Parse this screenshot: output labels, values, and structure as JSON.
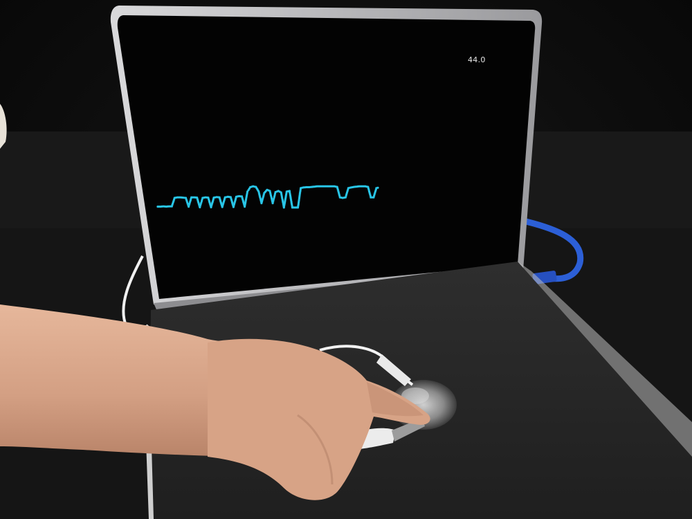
{
  "screen": {
    "reading": "44.0",
    "trace_color": "#29c6e8",
    "trace_samples": [
      0.08,
      0.08,
      0.09,
      0.08,
      0.09,
      0.09,
      0.38,
      0.4,
      0.4,
      0.39,
      0.38,
      0.08,
      0.4,
      0.4,
      0.39,
      0.06,
      0.38,
      0.4,
      0.39,
      0.06,
      0.39,
      0.41,
      0.4,
      0.07,
      0.4,
      0.42,
      0.41,
      0.07,
      0.42,
      0.44,
      0.43,
      0.08,
      0.6,
      0.75,
      0.78,
      0.76,
      0.6,
      0.2,
      0.55,
      0.66,
      0.62,
      0.2,
      0.58,
      0.62,
      0.57,
      0.05,
      0.6,
      0.62,
      0.05,
      0.05,
      0.05,
      0.72,
      0.74,
      0.75,
      0.75,
      0.76,
      0.77,
      0.78,
      0.78,
      0.78,
      0.78,
      0.78,
      0.78,
      0.78,
      0.76,
      0.4,
      0.38,
      0.4,
      0.72,
      0.74,
      0.76,
      0.77,
      0.78,
      0.78,
      0.78,
      0.76,
      0.4,
      0.4,
      0.72,
      0.74
    ]
  },
  "colors": {
    "backdrop": "#0e0e0e",
    "laptop_shell": "#c9c9cb",
    "screen_bezel": "#050505",
    "board": "#262626",
    "skin": "#d8a68a",
    "usb_cable": "#2c5fd6",
    "clip_cable": "#f2f2f2",
    "steel_wool": "#8f8f8f"
  }
}
